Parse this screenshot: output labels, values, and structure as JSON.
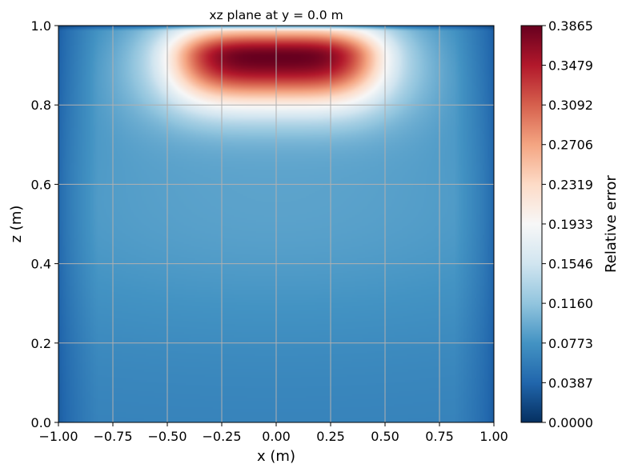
{
  "chart_data": {
    "type": "heatmap",
    "title": "xz plane at y = 0.0 m",
    "xlabel": "x (m)",
    "ylabel": "z (m)",
    "xlim": [
      -1.0,
      1.0
    ],
    "ylim": [
      0.0,
      1.0
    ],
    "x_ticks": [
      "−1.00",
      "−0.75",
      "−0.50",
      "−0.25",
      "0.00",
      "0.25",
      "0.50",
      "0.75",
      "1.00"
    ],
    "y_ticks": [
      "0.0",
      "0.2",
      "0.4",
      "0.6",
      "0.8",
      "1.0"
    ],
    "grid": true,
    "colormap": "RdBu_r",
    "colorbar": {
      "label": "Relative error",
      "min": 0.0,
      "max": 0.3865,
      "ticks": [
        "0.0000",
        "0.0387",
        "0.0773",
        "0.1160",
        "0.1546",
        "0.1933",
        "0.2319",
        "0.2706",
        "0.3092",
        "0.3479",
        "0.3865"
      ]
    },
    "peak": {
      "x": 0.0,
      "z": 0.92,
      "value": 0.3865
    }
  },
  "colors": {
    "grid": "#b0b0b0",
    "stops": [
      "#053061",
      "#2166ac",
      "#4393c3",
      "#92c5de",
      "#d1e5f0",
      "#f7f7f7",
      "#fddbc7",
      "#f4a582",
      "#d6604d",
      "#b2182b",
      "#67001f"
    ]
  }
}
